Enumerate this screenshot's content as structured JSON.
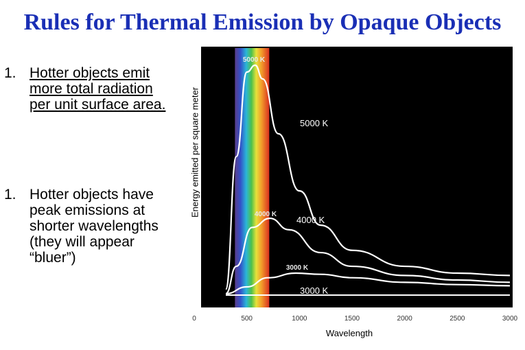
{
  "title": "Rules for Thermal Emission by Opaque Objects",
  "points": [
    {
      "number": "1.",
      "text": "Hotter objects emit\nmore total radiation\nper unit surface area."
    },
    {
      "number": "1.",
      "text": "Hotter objects have\npeak emissions at\nshorter wavelengths\n(they will appear\n“bluer”)"
    }
  ],
  "chart_data": {
    "type": "line",
    "xlabel": "Wavelength",
    "ylabel": "Energy emitted per square meter",
    "xlim": [
      0,
      3000
    ],
    "xticks": [
      0,
      500,
      1000,
      1500,
      2000,
      2500,
      3000
    ],
    "background": "#000000",
    "curve_color": "#ffffff",
    "visible_band": [
      400,
      700
    ],
    "series": [
      {
        "name": "5000 K",
        "inner_label": "5000 K",
        "outer_label": "5000 K",
        "x": [
          300,
          400,
          500,
          580,
          650,
          800,
          1000,
          1200,
          1500,
          2000,
          2500,
          3000
        ],
        "y": [
          0.02,
          0.6,
          0.97,
          1.0,
          0.94,
          0.7,
          0.45,
          0.3,
          0.19,
          0.12,
          0.09,
          0.08
        ]
      },
      {
        "name": "4000 K",
        "inner_label": "4000 K",
        "outer_label": "4000 K",
        "x": [
          300,
          400,
          550,
          720,
          900,
          1200,
          1500,
          2000,
          2500,
          3000
        ],
        "y": [
          0.0,
          0.12,
          0.29,
          0.33,
          0.28,
          0.18,
          0.12,
          0.08,
          0.06,
          0.05
        ]
      },
      {
        "name": "3000 K",
        "inner_label": "3000 K",
        "outer_label": "3000 K",
        "x": [
          300,
          500,
          700,
          966,
          1200,
          1500,
          2000,
          2500,
          3000
        ],
        "y": [
          0.0,
          0.03,
          0.07,
          0.09,
          0.085,
          0.07,
          0.05,
          0.04,
          0.035
        ]
      }
    ]
  }
}
